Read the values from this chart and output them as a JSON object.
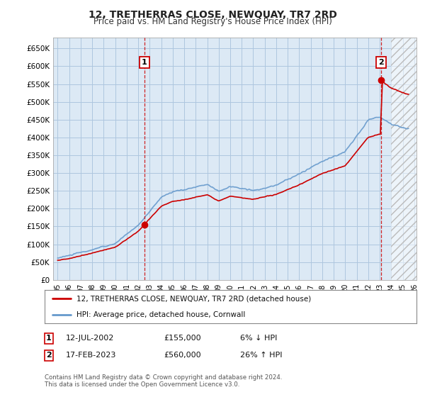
{
  "title": "12, TRETHERRAS CLOSE, NEWQUAY, TR7 2RD",
  "subtitle": "Price paid vs. HM Land Registry's House Price Index (HPI)",
  "ylim": [
    0,
    680000
  ],
  "yticks": [
    0,
    50000,
    100000,
    150000,
    200000,
    250000,
    300000,
    350000,
    400000,
    450000,
    500000,
    550000,
    600000,
    650000
  ],
  "xlim_start": 1994.6,
  "xlim_end": 2026.2,
  "bg_color": "#ffffff",
  "chart_bg_color": "#dce9f5",
  "grid_color": "#aec6df",
  "hpi_color": "#6699cc",
  "price_color": "#cc0000",
  "purchase1_date": 2002.53,
  "purchase1_price": 155000,
  "purchase2_date": 2023.12,
  "purchase2_price": 560000,
  "legend_label1": "12, TRETHERRAS CLOSE, NEWQUAY, TR7 2RD (detached house)",
  "legend_label2": "HPI: Average price, detached house, Cornwall",
  "annotation1_label": "1",
  "annotation2_label": "2",
  "table_row1": [
    "1",
    "12-JUL-2002",
    "£155,000",
    "6% ↓ HPI"
  ],
  "table_row2": [
    "2",
    "17-FEB-2023",
    "£560,000",
    "26% ↑ HPI"
  ],
  "footer": "Contains HM Land Registry data © Crown copyright and database right 2024.\nThis data is licensed under the Open Government Licence v3.0.",
  "hatch_xlim": 2024.0,
  "seed": 12345
}
